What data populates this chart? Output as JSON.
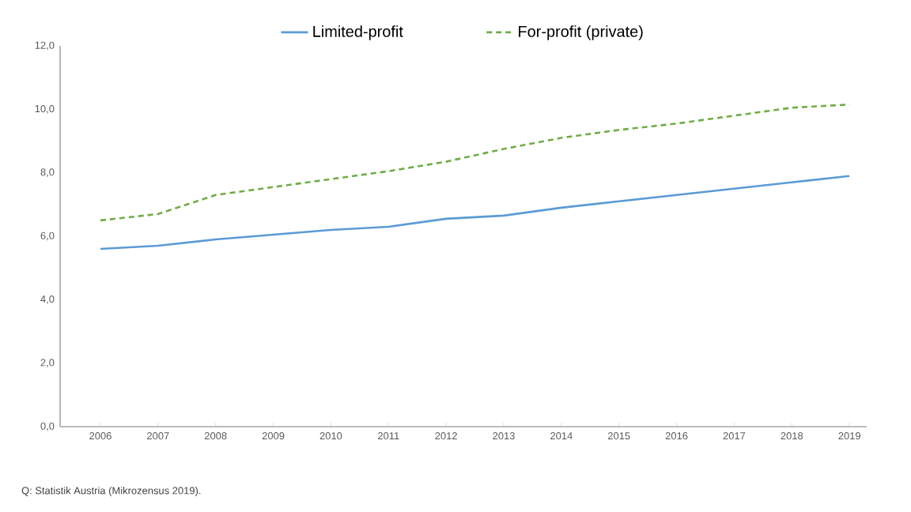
{
  "chart_data": {
    "type": "line",
    "categories": [
      "2006",
      "2007",
      "2008",
      "2009",
      "2010",
      "2011",
      "2012",
      "2013",
      "2014",
      "2015",
      "2016",
      "2017",
      "2018",
      "2019"
    ],
    "series": [
      {
        "name": "Limited-profit",
        "color": "#5b9bd5",
        "line_style": "solid",
        "values": [
          5.6,
          5.7,
          5.9,
          6.05,
          6.2,
          6.3,
          6.55,
          6.65,
          6.9,
          7.1,
          7.3,
          7.5,
          7.7,
          7.9
        ]
      },
      {
        "name": "For-profit (private)",
        "color": "#70ad47",
        "line_style": "dashed",
        "values": [
          6.5,
          6.7,
          7.3,
          7.55,
          7.8,
          8.05,
          8.35,
          8.75,
          9.1,
          9.35,
          9.55,
          9.8,
          10.05,
          10.15
        ]
      }
    ],
    "ylim": [
      0,
      12
    ],
    "yticks": [
      {
        "value": 0,
        "label": "0,0"
      },
      {
        "value": 2,
        "label": "2,0"
      },
      {
        "value": 4,
        "label": "4,0"
      },
      {
        "value": 6,
        "label": "6,0"
      },
      {
        "value": 8,
        "label": "8,0"
      },
      {
        "value": 10,
        "label": "10,0"
      },
      {
        "value": 12,
        "label": "12,0"
      }
    ],
    "legend": "top",
    "grid": false,
    "marker": "none",
    "annotations": [
      "Q: Statistik Austria (Mikrozensus 2019)."
    ]
  }
}
